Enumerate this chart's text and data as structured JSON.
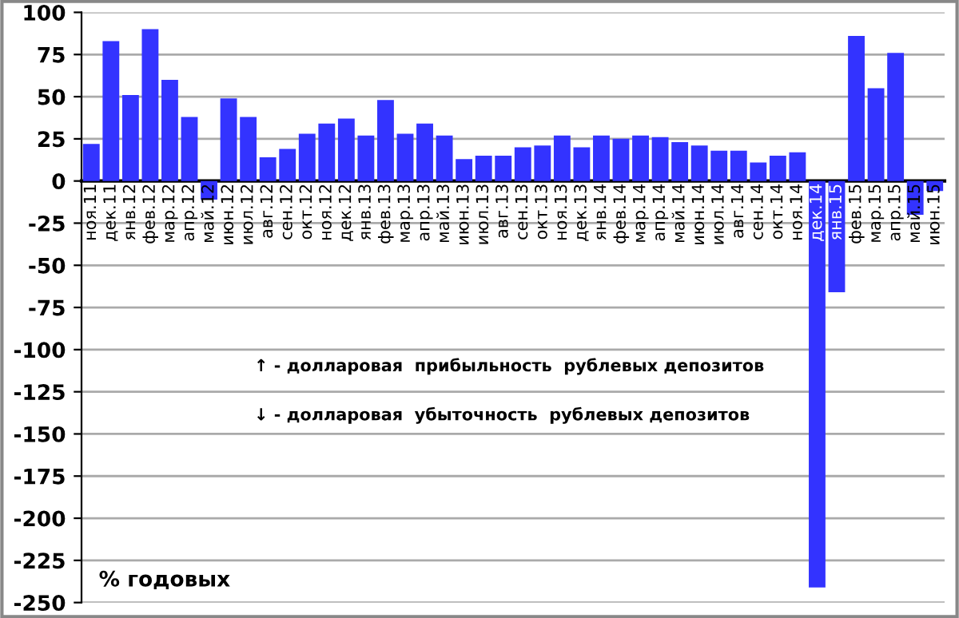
{
  "chart_data": {
    "type": "bar",
    "categories": [
      "ноя.11",
      "дек.11",
      "янв.12",
      "фев.12",
      "мар.12",
      "апр.12",
      "май.12",
      "июн.12",
      "июл.12",
      "авг.12",
      "сен.12",
      "окт.12",
      "ноя.12",
      "дек.12",
      "янв.13",
      "фев.13",
      "мар.13",
      "апр.13",
      "май.13",
      "июн.13",
      "июл.13",
      "авг.13",
      "сен.13",
      "окт.13",
      "ноя.13",
      "дек.13",
      "янв.14",
      "фев.14",
      "мар.14",
      "апр.14",
      "май.14",
      "июн.14",
      "июл.14",
      "авг.14",
      "сен.14",
      "окт.14",
      "ноя.14",
      "дек.14",
      "янв.15",
      "фев.15",
      "мар.15",
      "апр.15",
      "май.15",
      "июн.15"
    ],
    "values": [
      22,
      83,
      51,
      90,
      60,
      38,
      -11,
      49,
      38,
      14,
      19,
      28,
      34,
      37,
      27,
      48,
      28,
      34,
      27,
      13,
      15,
      15,
      20,
      21,
      27,
      20,
      27,
      25,
      27,
      26,
      23,
      21,
      18,
      18,
      11,
      15,
      17,
      -241,
      -66,
      86,
      55,
      76,
      -20,
      -6
    ],
    "color": "#3333ff",
    "ylim": [
      -250,
      100
    ],
    "yticks": [
      -250,
      -225,
      -200,
      -175,
      -150,
      -125,
      -100,
      -75,
      -50,
      -25,
      0,
      25,
      50,
      75,
      100
    ],
    "grid": "y",
    "ylabel": "% годовых",
    "annotations": [
      "↑ - долларовая  прибыльность  рублевых депозитов",
      "↓ - долларовая  убыточность  рублевых депозитов"
    ]
  }
}
